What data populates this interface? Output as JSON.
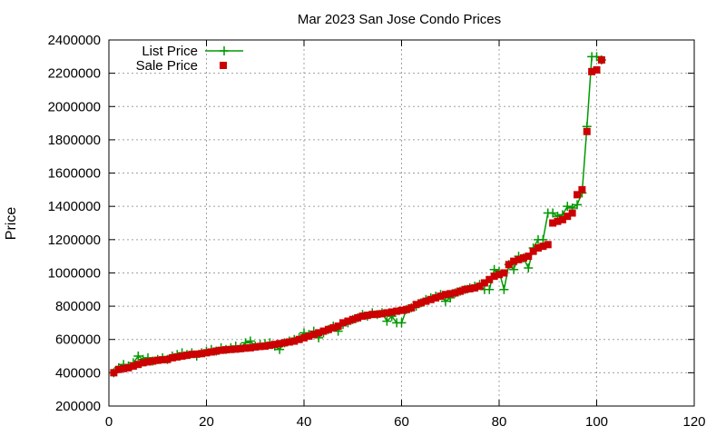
{
  "chart_data": {
    "type": "line",
    "title": "Mar 2023 San Jose Condo Prices",
    "xlabel": "",
    "ylabel": "Price",
    "xlim": [
      0,
      120
    ],
    "ylim": [
      200000,
      2400000
    ],
    "x_ticks": [
      0,
      20,
      40,
      60,
      80,
      100,
      120
    ],
    "x_tick_labels": [
      "0",
      "20",
      "40",
      "60",
      "80",
      "100",
      "120"
    ],
    "y_ticks": [
      200000,
      400000,
      600000,
      800000,
      1000000,
      1200000,
      1400000,
      1600000,
      1800000,
      2000000,
      2200000,
      2400000
    ],
    "y_tick_labels": [
      "200000",
      "400000",
      "600000",
      "800000",
      "1000000",
      "1200000",
      "1400000",
      "1600000",
      "1800000",
      "2000000",
      "2200000",
      "2400000"
    ],
    "grid": true,
    "legend_position": "top-left",
    "series": [
      {
        "name": "List Price",
        "style": "line-with-plus",
        "color": "#009900",
        "x": [
          1,
          2,
          3,
          4,
          5,
          6,
          7,
          8,
          9,
          10,
          11,
          12,
          13,
          14,
          15,
          16,
          17,
          18,
          19,
          20,
          21,
          22,
          23,
          24,
          25,
          26,
          27,
          28,
          29,
          30,
          31,
          32,
          33,
          34,
          35,
          36,
          37,
          38,
          39,
          40,
          41,
          42,
          43,
          44,
          45,
          46,
          47,
          48,
          49,
          50,
          51,
          52,
          53,
          54,
          55,
          56,
          57,
          58,
          59,
          60,
          61,
          62,
          63,
          64,
          65,
          66,
          67,
          68,
          69,
          70,
          71,
          72,
          73,
          74,
          75,
          76,
          77,
          78,
          79,
          80,
          81,
          82,
          83,
          84,
          85,
          86,
          87,
          88,
          89,
          90,
          91,
          92,
          93,
          94,
          95,
          96,
          97,
          98,
          99,
          100,
          101
        ],
        "values": [
          400000,
          430000,
          450000,
          440000,
          460000,
          500000,
          480000,
          490000,
          470000,
          480000,
          490000,
          480000,
          500000,
          510000,
          520000,
          510000,
          520000,
          500000,
          520000,
          530000,
          540000,
          530000,
          550000,
          540000,
          550000,
          560000,
          550000,
          580000,
          590000,
          560000,
          570000,
          575000,
          580000,
          560000,
          540000,
          580000,
          590000,
          600000,
          610000,
          640000,
          630000,
          650000,
          610000,
          640000,
          660000,
          680000,
          650000,
          690000,
          700000,
          720000,
          730000,
          750000,
          740000,
          760000,
          750000,
          760000,
          710000,
          740000,
          700000,
          700000,
          780000,
          790000,
          800000,
          820000,
          840000,
          850000,
          860000,
          870000,
          830000,
          850000,
          880000,
          890000,
          900000,
          910000,
          920000,
          930000,
          900000,
          900000,
          1020000,
          1010000,
          900000,
          1050000,
          1020000,
          1100000,
          1090000,
          1030000,
          1150000,
          1200000,
          1200000,
          1360000,
          1360000,
          1340000,
          1350000,
          1400000,
          1390000,
          1410000,
          1480000,
          1880000,
          2300000,
          2300000,
          2280000
        ]
      },
      {
        "name": "Sale Price",
        "style": "square-markers",
        "color": "#cc0000",
        "x": [
          1,
          2,
          3,
          4,
          5,
          6,
          7,
          8,
          9,
          10,
          11,
          12,
          13,
          14,
          15,
          16,
          17,
          18,
          19,
          20,
          21,
          22,
          23,
          24,
          25,
          26,
          27,
          28,
          29,
          30,
          31,
          32,
          33,
          34,
          35,
          36,
          37,
          38,
          39,
          40,
          41,
          42,
          43,
          44,
          45,
          46,
          47,
          48,
          49,
          50,
          51,
          52,
          53,
          54,
          55,
          56,
          57,
          58,
          59,
          60,
          61,
          62,
          63,
          64,
          65,
          66,
          67,
          68,
          69,
          70,
          71,
          72,
          73,
          74,
          75,
          76,
          77,
          78,
          79,
          80,
          81,
          82,
          83,
          84,
          85,
          86,
          87,
          88,
          89,
          90,
          91,
          92,
          93,
          94,
          95,
          96,
          97,
          98,
          99,
          100,
          101
        ],
        "values": [
          400000,
          420000,
          425000,
          430000,
          440000,
          450000,
          460000,
          465000,
          470000,
          475000,
          478000,
          480000,
          490000,
          495000,
          500000,
          505000,
          510000,
          512000,
          515000,
          520000,
          525000,
          530000,
          535000,
          538000,
          540000,
          542000,
          545000,
          548000,
          550000,
          555000,
          558000,
          560000,
          565000,
          570000,
          575000,
          580000,
          585000,
          590000,
          600000,
          610000,
          620000,
          630000,
          640000,
          650000,
          660000,
          670000,
          680000,
          700000,
          710000,
          720000,
          730000,
          740000,
          745000,
          750000,
          752000,
          755000,
          760000,
          765000,
          770000,
          775000,
          780000,
          790000,
          810000,
          820000,
          830000,
          840000,
          850000,
          860000,
          870000,
          875000,
          880000,
          890000,
          900000,
          905000,
          910000,
          920000,
          940000,
          960000,
          980000,
          990000,
          1000000,
          1050000,
          1070000,
          1080000,
          1090000,
          1100000,
          1130000,
          1150000,
          1160000,
          1170000,
          1300000,
          1310000,
          1320000,
          1340000,
          1360000,
          1470000,
          1500000,
          1850000,
          2210000,
          2220000,
          2280000
        ]
      }
    ]
  }
}
